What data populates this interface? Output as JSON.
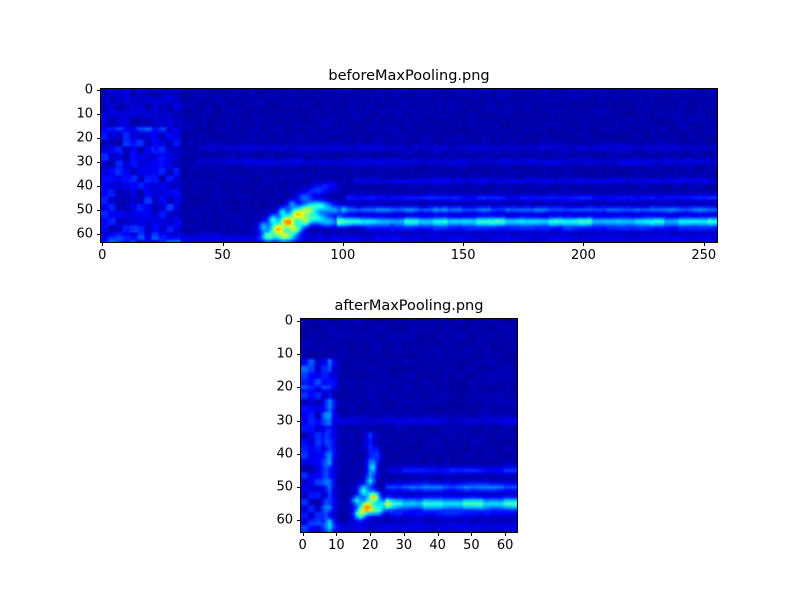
{
  "figure": {
    "background_color": "#ffffff",
    "plot_background_value_color": "#00008a"
  },
  "chart_data": [
    {
      "type": "heatmap",
      "title": "beforeMaxPooling.png",
      "xlabel": "",
      "ylabel": "",
      "x_ticks": [
        0,
        50,
        100,
        150,
        200,
        250
      ],
      "y_ticks": [
        0,
        10,
        20,
        30,
        40,
        50,
        60
      ],
      "x_range": [
        0,
        256
      ],
      "y_range": [
        0,
        64
      ],
      "colormap": "jet",
      "interpolation": "bilinear",
      "grid": false,
      "legend": false,
      "background_value": 0.03,
      "value_cap": 0.75,
      "blobs": [
        {
          "x": 69,
          "y": 61,
          "sx": 2.0,
          "sy": 1.5,
          "amp": 0.38
        },
        {
          "x": 73,
          "y": 58,
          "sx": 2.0,
          "sy": 1.5,
          "amp": 0.62
        },
        {
          "x": 77,
          "y": 55,
          "sx": 2.0,
          "sy": 1.5,
          "amp": 0.72
        },
        {
          "x": 81,
          "y": 52,
          "sx": 2.0,
          "sy": 1.5,
          "amp": 0.55
        },
        {
          "x": 85,
          "y": 50,
          "sx": 2.5,
          "sy": 1.5,
          "amp": 0.42
        },
        {
          "x": 90,
          "y": 48,
          "sx": 3.0,
          "sy": 1.5,
          "amp": 0.3
        },
        {
          "x": 76,
          "y": 61,
          "sx": 2.5,
          "sy": 1.5,
          "amp": 0.45
        },
        {
          "x": 80,
          "y": 58,
          "sx": 2.0,
          "sy": 1.5,
          "amp": 0.48
        },
        {
          "x": 84,
          "y": 55,
          "sx": 2.0,
          "sy": 1.5,
          "amp": 0.38
        },
        {
          "x": 88,
          "y": 53,
          "sx": 3.0,
          "sy": 1.5,
          "amp": 0.3
        },
        {
          "x": 71,
          "y": 54,
          "sx": 1.5,
          "sy": 1.5,
          "amp": 0.34
        },
        {
          "x": 75,
          "y": 51,
          "sx": 1.5,
          "sy": 1.5,
          "amp": 0.3
        },
        {
          "x": 79,
          "y": 48,
          "sx": 1.5,
          "sy": 1.5,
          "amp": 0.22
        },
        {
          "x": 84,
          "y": 45,
          "sx": 2.0,
          "sy": 1.5,
          "amp": 0.18
        },
        {
          "x": 89,
          "y": 42,
          "sx": 2.5,
          "sy": 1.5,
          "amp": 0.13
        },
        {
          "x": 94,
          "y": 40,
          "sx": 3.0,
          "sy": 1.5,
          "amp": 0.09
        },
        {
          "x": 67,
          "y": 57,
          "sx": 1.5,
          "sy": 1.5,
          "amp": 0.26
        },
        {
          "x": 96,
          "y": 50,
          "sx": 4.0,
          "sy": 1.5,
          "amp": 0.22
        },
        {
          "x": 94,
          "y": 55,
          "sx": 4.0,
          "sy": 1.5,
          "amp": 0.26
        }
      ],
      "h_streaks": [
        {
          "x0": 98,
          "x1": 255,
          "y": 55,
          "sy": 1.3,
          "amp": 0.32
        },
        {
          "x0": 100,
          "x1": 255,
          "y": 50,
          "sy": 1.0,
          "amp": 0.18
        },
        {
          "x0": 102,
          "x1": 255,
          "y": 45,
          "sy": 0.9,
          "amp": 0.1
        },
        {
          "x0": 105,
          "x1": 255,
          "y": 38,
          "sy": 0.8,
          "amp": 0.06
        },
        {
          "x0": 40,
          "x1": 255,
          "y": 30,
          "sy": 0.9,
          "amp": 0.05
        },
        {
          "x0": 40,
          "x1": 255,
          "y": 24,
          "sy": 0.9,
          "amp": 0.04
        },
        {
          "x0": 0,
          "x1": 255,
          "y": 62,
          "sy": 1.2,
          "amp": 0.06
        },
        {
          "x0": 110,
          "x1": 255,
          "y": 58,
          "sy": 0.9,
          "amp": 0.08
        }
      ],
      "v_streaks": [],
      "noise_regions": [
        {
          "x0": 0,
          "x1": 32,
          "y0": 16,
          "y1": 63,
          "amp": 0.13,
          "seed": 3,
          "scale": 3
        },
        {
          "x0": 0,
          "x1": 32,
          "y0": 0,
          "y1": 16,
          "amp": 0.05,
          "seed": 5,
          "scale": 3
        },
        {
          "x0": 0,
          "x1": 255,
          "y0": 0,
          "y1": 63,
          "amp": 0.03,
          "seed": 7,
          "scale": 2
        }
      ]
    },
    {
      "type": "heatmap",
      "title": "afterMaxPooling.png",
      "xlabel": "",
      "ylabel": "",
      "x_ticks": [
        0,
        10,
        20,
        30,
        40,
        50,
        60
      ],
      "y_ticks": [
        0,
        10,
        20,
        30,
        40,
        50,
        60
      ],
      "x_range": [
        0,
        64
      ],
      "y_range": [
        0,
        64
      ],
      "colormap": "jet",
      "interpolation": "bilinear",
      "grid": false,
      "legend": false,
      "background_value": 0.03,
      "value_cap": 0.75,
      "blobs": [
        {
          "x": 19,
          "y": 56,
          "sx": 1.2,
          "sy": 1.2,
          "amp": 0.75
        },
        {
          "x": 21,
          "y": 53,
          "sx": 1.2,
          "sy": 1.2,
          "amp": 0.6
        },
        {
          "x": 17,
          "y": 58,
          "sx": 1.2,
          "sy": 1.2,
          "amp": 0.45
        },
        {
          "x": 22,
          "y": 57,
          "sx": 1.5,
          "sy": 1.0,
          "amp": 0.4
        },
        {
          "x": 18,
          "y": 51,
          "sx": 1.0,
          "sy": 1.2,
          "amp": 0.38
        },
        {
          "x": 20,
          "y": 48,
          "sx": 0.9,
          "sy": 1.2,
          "amp": 0.32
        },
        {
          "x": 21,
          "y": 44,
          "sx": 0.8,
          "sy": 1.5,
          "amp": 0.22
        },
        {
          "x": 22,
          "y": 40,
          "sx": 0.8,
          "sy": 1.5,
          "amp": 0.13
        },
        {
          "x": 16,
          "y": 54,
          "sx": 1.0,
          "sy": 1.0,
          "amp": 0.34
        },
        {
          "x": 24,
          "y": 55,
          "sx": 1.5,
          "sy": 1.0,
          "amp": 0.3
        }
      ],
      "h_streaks": [
        {
          "x0": 25,
          "x1": 63,
          "y": 55,
          "sy": 1.2,
          "amp": 0.32
        },
        {
          "x0": 25,
          "x1": 63,
          "y": 50,
          "sy": 0.9,
          "amp": 0.18
        },
        {
          "x0": 26,
          "x1": 63,
          "y": 45,
          "sy": 0.8,
          "amp": 0.1
        },
        {
          "x0": 10,
          "x1": 63,
          "y": 30,
          "sy": 0.8,
          "amp": 0.05
        },
        {
          "x0": 0,
          "x1": 63,
          "y": 62,
          "sy": 1.0,
          "amp": 0.06
        },
        {
          "x0": 26,
          "x1": 63,
          "y": 58,
          "sy": 0.8,
          "amp": 0.08
        }
      ],
      "v_streaks": [
        {
          "x": 8,
          "y0": 24,
          "y1": 63,
          "sx": 1.2,
          "amp": 0.12
        },
        {
          "x": 20,
          "y0": 34,
          "y1": 46,
          "sx": 0.8,
          "amp": 0.12
        }
      ],
      "noise_regions": [
        {
          "x0": 0,
          "x1": 8,
          "y0": 12,
          "y1": 63,
          "amp": 0.12,
          "seed": 4,
          "scale": 2
        },
        {
          "x0": 0,
          "x1": 10,
          "y0": 12,
          "y1": 20,
          "amp": 0.08,
          "seed": 11,
          "scale": 2
        },
        {
          "x0": 0,
          "x1": 63,
          "y0": 0,
          "y1": 63,
          "amp": 0.03,
          "seed": 9,
          "scale": 2
        }
      ]
    }
  ]
}
